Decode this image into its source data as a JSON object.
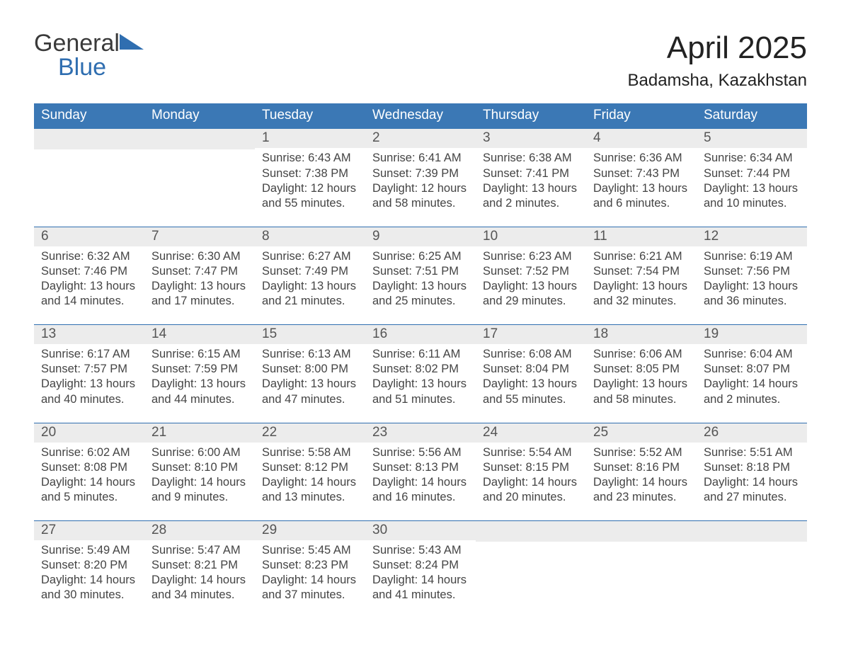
{
  "logo": {
    "word1": "General",
    "word2": "Blue"
  },
  "header": {
    "month_title": "April 2025",
    "location": "Badamsha, Kazakhstan"
  },
  "colors": {
    "header_bg": "#3b78b5",
    "accent": "#2f6eb0",
    "row_separator": "#2f6eb0",
    "daynum_bg": "#ececec",
    "text": "#333333",
    "page_bg": "#ffffff"
  },
  "weekday_headers": [
    "Sunday",
    "Monday",
    "Tuesday",
    "Wednesday",
    "Thursday",
    "Friday",
    "Saturday"
  ],
  "weeks": [
    [
      null,
      null,
      {
        "day": "1",
        "sunrise": "Sunrise: 6:43 AM",
        "sunset": "Sunset: 7:38 PM",
        "daylight": "Daylight: 12 hours and 55 minutes."
      },
      {
        "day": "2",
        "sunrise": "Sunrise: 6:41 AM",
        "sunset": "Sunset: 7:39 PM",
        "daylight": "Daylight: 12 hours and 58 minutes."
      },
      {
        "day": "3",
        "sunrise": "Sunrise: 6:38 AM",
        "sunset": "Sunset: 7:41 PM",
        "daylight": "Daylight: 13 hours and 2 minutes."
      },
      {
        "day": "4",
        "sunrise": "Sunrise: 6:36 AM",
        "sunset": "Sunset: 7:43 PM",
        "daylight": "Daylight: 13 hours and 6 minutes."
      },
      {
        "day": "5",
        "sunrise": "Sunrise: 6:34 AM",
        "sunset": "Sunset: 7:44 PM",
        "daylight": "Daylight: 13 hours and 10 minutes."
      }
    ],
    [
      {
        "day": "6",
        "sunrise": "Sunrise: 6:32 AM",
        "sunset": "Sunset: 7:46 PM",
        "daylight": "Daylight: 13 hours and 14 minutes."
      },
      {
        "day": "7",
        "sunrise": "Sunrise: 6:30 AM",
        "sunset": "Sunset: 7:47 PM",
        "daylight": "Daylight: 13 hours and 17 minutes."
      },
      {
        "day": "8",
        "sunrise": "Sunrise: 6:27 AM",
        "sunset": "Sunset: 7:49 PM",
        "daylight": "Daylight: 13 hours and 21 minutes."
      },
      {
        "day": "9",
        "sunrise": "Sunrise: 6:25 AM",
        "sunset": "Sunset: 7:51 PM",
        "daylight": "Daylight: 13 hours and 25 minutes."
      },
      {
        "day": "10",
        "sunrise": "Sunrise: 6:23 AM",
        "sunset": "Sunset: 7:52 PM",
        "daylight": "Daylight: 13 hours and 29 minutes."
      },
      {
        "day": "11",
        "sunrise": "Sunrise: 6:21 AM",
        "sunset": "Sunset: 7:54 PM",
        "daylight": "Daylight: 13 hours and 32 minutes."
      },
      {
        "day": "12",
        "sunrise": "Sunrise: 6:19 AM",
        "sunset": "Sunset: 7:56 PM",
        "daylight": "Daylight: 13 hours and 36 minutes."
      }
    ],
    [
      {
        "day": "13",
        "sunrise": "Sunrise: 6:17 AM",
        "sunset": "Sunset: 7:57 PM",
        "daylight": "Daylight: 13 hours and 40 minutes."
      },
      {
        "day": "14",
        "sunrise": "Sunrise: 6:15 AM",
        "sunset": "Sunset: 7:59 PM",
        "daylight": "Daylight: 13 hours and 44 minutes."
      },
      {
        "day": "15",
        "sunrise": "Sunrise: 6:13 AM",
        "sunset": "Sunset: 8:00 PM",
        "daylight": "Daylight: 13 hours and 47 minutes."
      },
      {
        "day": "16",
        "sunrise": "Sunrise: 6:11 AM",
        "sunset": "Sunset: 8:02 PM",
        "daylight": "Daylight: 13 hours and 51 minutes."
      },
      {
        "day": "17",
        "sunrise": "Sunrise: 6:08 AM",
        "sunset": "Sunset: 8:04 PM",
        "daylight": "Daylight: 13 hours and 55 minutes."
      },
      {
        "day": "18",
        "sunrise": "Sunrise: 6:06 AM",
        "sunset": "Sunset: 8:05 PM",
        "daylight": "Daylight: 13 hours and 58 minutes."
      },
      {
        "day": "19",
        "sunrise": "Sunrise: 6:04 AM",
        "sunset": "Sunset: 8:07 PM",
        "daylight": "Daylight: 14 hours and 2 minutes."
      }
    ],
    [
      {
        "day": "20",
        "sunrise": "Sunrise: 6:02 AM",
        "sunset": "Sunset: 8:08 PM",
        "daylight": "Daylight: 14 hours and 5 minutes."
      },
      {
        "day": "21",
        "sunrise": "Sunrise: 6:00 AM",
        "sunset": "Sunset: 8:10 PM",
        "daylight": "Daylight: 14 hours and 9 minutes."
      },
      {
        "day": "22",
        "sunrise": "Sunrise: 5:58 AM",
        "sunset": "Sunset: 8:12 PM",
        "daylight": "Daylight: 14 hours and 13 minutes."
      },
      {
        "day": "23",
        "sunrise": "Sunrise: 5:56 AM",
        "sunset": "Sunset: 8:13 PM",
        "daylight": "Daylight: 14 hours and 16 minutes."
      },
      {
        "day": "24",
        "sunrise": "Sunrise: 5:54 AM",
        "sunset": "Sunset: 8:15 PM",
        "daylight": "Daylight: 14 hours and 20 minutes."
      },
      {
        "day": "25",
        "sunrise": "Sunrise: 5:52 AM",
        "sunset": "Sunset: 8:16 PM",
        "daylight": "Daylight: 14 hours and 23 minutes."
      },
      {
        "day": "26",
        "sunrise": "Sunrise: 5:51 AM",
        "sunset": "Sunset: 8:18 PM",
        "daylight": "Daylight: 14 hours and 27 minutes."
      }
    ],
    [
      {
        "day": "27",
        "sunrise": "Sunrise: 5:49 AM",
        "sunset": "Sunset: 8:20 PM",
        "daylight": "Daylight: 14 hours and 30 minutes."
      },
      {
        "day": "28",
        "sunrise": "Sunrise: 5:47 AM",
        "sunset": "Sunset: 8:21 PM",
        "daylight": "Daylight: 14 hours and 34 minutes."
      },
      {
        "day": "29",
        "sunrise": "Sunrise: 5:45 AM",
        "sunset": "Sunset: 8:23 PM",
        "daylight": "Daylight: 14 hours and 37 minutes."
      },
      {
        "day": "30",
        "sunrise": "Sunrise: 5:43 AM",
        "sunset": "Sunset: 8:24 PM",
        "daylight": "Daylight: 14 hours and 41 minutes."
      },
      null,
      null,
      null
    ]
  ]
}
